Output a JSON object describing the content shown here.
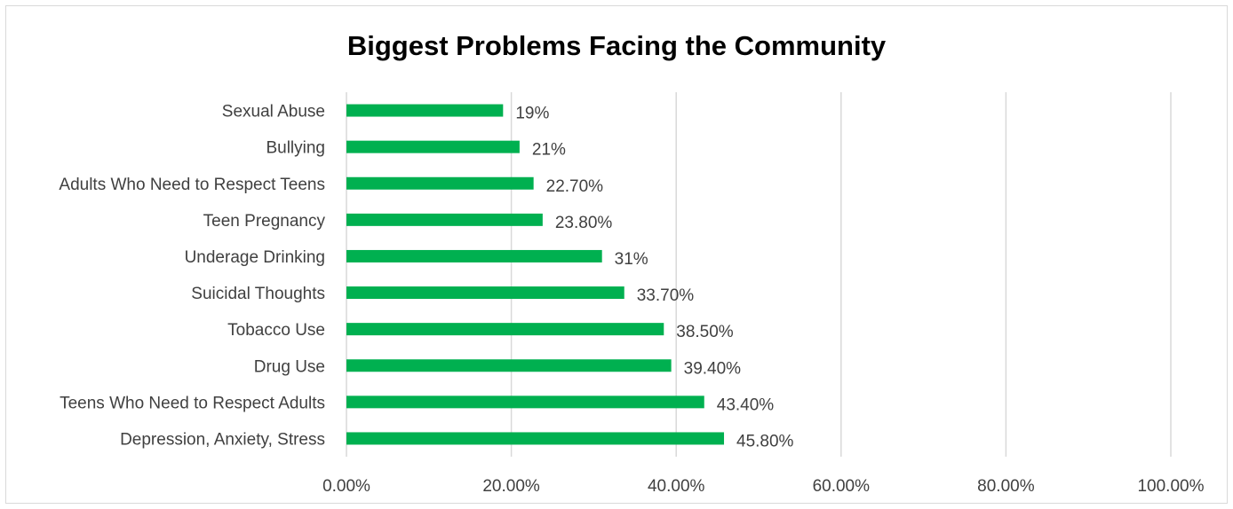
{
  "chart_data": {
    "type": "bar",
    "orientation": "horizontal",
    "title": "Biggest Problems Facing the Community",
    "xlabel": "",
    "ylabel": "",
    "categories": [
      "Sexual Abuse",
      "Bullying",
      "Adults Who Need to Respect Teens",
      "Teen Pregnancy",
      "Underage Drinking",
      "Suicidal Thoughts",
      "Tobacco Use",
      "Drug Use",
      "Teens Who Need to Respect Adults",
      "Depression, Anxiety, Stress"
    ],
    "values": [
      19,
      21,
      22.7,
      23.8,
      31,
      33.7,
      38.5,
      39.4,
      43.4,
      45.8
    ],
    "data_labels": [
      "19%",
      "21%",
      "22.70%",
      "23.80%",
      "31%",
      "33.70%",
      "38.50%",
      "39.40%",
      "43.40%",
      "45.80%"
    ],
    "xlim": [
      0,
      100
    ],
    "x_ticks": [
      0,
      20,
      40,
      60,
      80,
      100
    ],
    "x_tick_labels": [
      "0.00%",
      "20.00%",
      "40.00%",
      "60.00%",
      "80.00%",
      "100.00%"
    ],
    "grid": "vertical",
    "legend": "none",
    "bar_color": "#00b050"
  }
}
